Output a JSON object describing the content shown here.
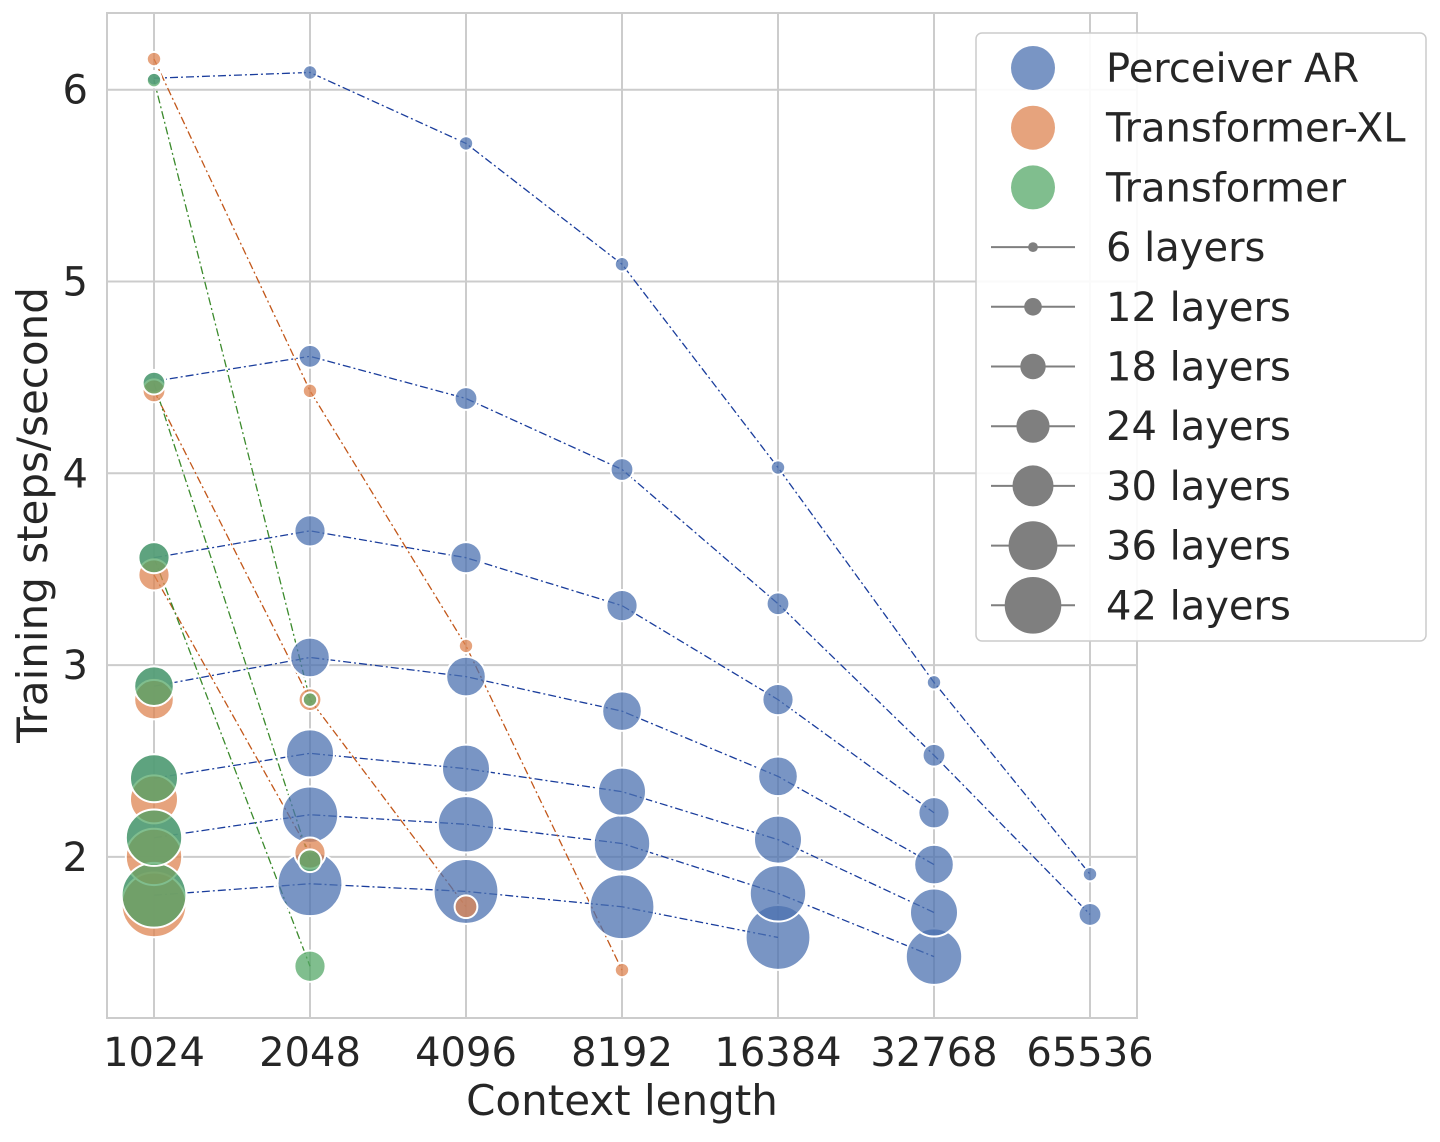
{
  "chart_data": {
    "type": "scatter",
    "xlabel": "Context length",
    "ylabel": "Training steps/second",
    "x_categories": [
      "1024",
      "2048",
      "4096",
      "8192",
      "16384",
      "32768",
      "65536"
    ],
    "yticks": [
      2,
      3,
      4,
      5,
      6
    ],
    "ylim": [
      1.16,
      6.4
    ],
    "grid": true,
    "legend_placement": "top-right",
    "series": [
      {
        "name": "Perceiver AR",
        "color": "#4c72b0",
        "line": "#1a3d9c",
        "points": [
          {
            "layers": 6,
            "values": [
              6.06,
              6.09,
              5.72,
              5.09,
              4.03,
              2.91,
              1.91
            ]
          },
          {
            "layers": 12,
            "values": [
              4.48,
              4.61,
              4.39,
              4.02,
              3.32,
              2.53,
              1.7
            ]
          },
          {
            "layers": 18,
            "values": [
              3.56,
              3.7,
              3.56,
              3.31,
              2.82,
              2.23,
              null
            ]
          },
          {
            "layers": 24,
            "values": [
              2.89,
              3.04,
              2.94,
              2.76,
              2.42,
              1.96,
              null
            ]
          },
          {
            "layers": 30,
            "values": [
              2.41,
              2.54,
              2.46,
              2.34,
              2.09,
              1.71,
              null
            ]
          },
          {
            "layers": 36,
            "values": [
              2.1,
              2.22,
              2.17,
              2.07,
              1.81,
              1.48,
              null
            ]
          },
          {
            "layers": 42,
            "values": [
              1.8,
              1.86,
              1.82,
              1.74,
              1.58,
              null,
              null
            ]
          }
        ]
      },
      {
        "name": "Transformer-XL",
        "color": "#dd8452",
        "line": "#c2571a",
        "points": [
          {
            "layers": 6,
            "values": [
              6.16,
              4.43,
              3.1,
              1.41,
              null,
              null,
              null
            ]
          },
          {
            "layers": 12,
            "values": [
              4.43,
              2.82,
              1.74,
              null,
              null,
              null,
              null
            ]
          },
          {
            "layers": 18,
            "values": [
              3.47,
              2.02,
              null,
              null,
              null,
              null,
              null
            ]
          },
          {
            "layers": 24,
            "values": [
              2.82,
              null,
              null,
              null,
              null,
              null,
              null
            ]
          },
          {
            "layers": 30,
            "values": [
              2.3,
              null,
              null,
              null,
              null,
              null,
              null
            ]
          },
          {
            "layers": 36,
            "values": [
              2.0,
              null,
              null,
              null,
              null,
              null,
              null
            ]
          },
          {
            "layers": 42,
            "values": [
              1.75,
              null,
              null,
              null,
              null,
              null,
              null
            ]
          }
        ]
      },
      {
        "name": "Transformer",
        "color": "#55a868",
        "line": "#3b8a2c",
        "points": [
          {
            "layers": 6,
            "values": [
              6.05,
              2.82,
              null,
              null,
              null,
              null,
              null
            ]
          },
          {
            "layers": 12,
            "values": [
              4.47,
              1.98,
              null,
              null,
              null,
              null,
              null
            ]
          },
          {
            "layers": 18,
            "values": [
              3.56,
              1.43,
              null,
              null,
              null,
              null,
              null
            ]
          },
          {
            "layers": 24,
            "values": [
              2.89,
              null,
              null,
              null,
              null,
              null,
              null
            ]
          },
          {
            "layers": 30,
            "values": [
              2.41,
              null,
              null,
              null,
              null,
              null,
              null
            ]
          },
          {
            "layers": 36,
            "values": [
              2.1,
              null,
              null,
              null,
              null,
              null,
              null
            ]
          },
          {
            "layers": 42,
            "values": [
              1.8,
              null,
              null,
              null,
              null,
              null,
              null
            ]
          }
        ]
      }
    ],
    "legend": {
      "models": [
        "Perceiver AR",
        "Transformer-XL",
        "Transformer"
      ],
      "sizes": [
        {
          "layers": 6,
          "label": "6 layers"
        },
        {
          "layers": 12,
          "label": "12 layers"
        },
        {
          "layers": 18,
          "label": "18 layers"
        },
        {
          "layers": 24,
          "label": "24 layers"
        },
        {
          "layers": 30,
          "label": "30 layers"
        },
        {
          "layers": 36,
          "label": "36 layers"
        },
        {
          "layers": 42,
          "label": "42 layers"
        }
      ]
    }
  }
}
